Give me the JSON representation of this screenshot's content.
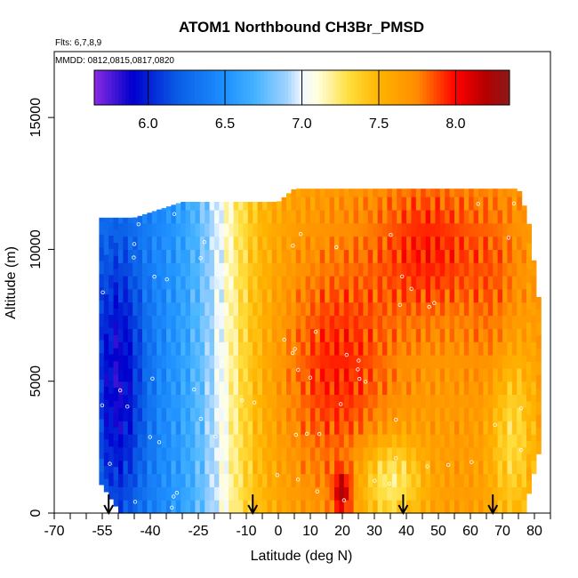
{
  "chart_data": {
    "type": "heatmap",
    "title": "ATOM1 Northbound CH3Br_PMSD",
    "subtitle_flights": "Flts: 6,7,8,9",
    "subtitle_dates": "MMDD: 0812,0815,0817,0820",
    "xlabel": "Latitude (deg N)",
    "ylabel": "Altitude (m)",
    "xlim": [
      -70,
      85
    ],
    "ylim": [
      0,
      17500
    ],
    "x_tick_labels": [
      "-70",
      "-55",
      "-40",
      "-25",
      "-10",
      "0",
      "10",
      "20",
      "30",
      "40",
      "50",
      "60",
      "70",
      "80"
    ],
    "x_ticks": [
      -70,
      -55,
      -40,
      -25,
      -10,
      0,
      10,
      20,
      30,
      40,
      50,
      60,
      70,
      80
    ],
    "x_minor_ticks": [
      -65,
      -60,
      -50,
      -45,
      -35,
      -30,
      -20,
      -15,
      -5,
      5,
      15,
      25,
      35,
      45,
      55,
      65,
      75,
      85
    ],
    "y_ticks": [
      0,
      5000,
      10000,
      15000
    ],
    "y_tick_labels": [
      "0",
      "5000",
      "10000",
      "15000"
    ],
    "colorbar": {
      "range": [
        5.65,
        8.35
      ],
      "ticks": [
        6.0,
        6.5,
        7.0,
        7.5,
        8.0
      ],
      "tick_labels": [
        "6.0",
        "6.5",
        "7.0",
        "7.5",
        "8.0"
      ],
      "colors": [
        "#8a2be2",
        "#0000cd",
        "#0a5fe6",
        "#1e90ff",
        "#46b4ff",
        "#a0d2ff",
        "#f0f8ff",
        "#ffffe0",
        "#ffe040",
        "#ffb400",
        "#ff8c00",
        "#ff0000",
        "#b40000",
        "#8b1a1a"
      ],
      "stops": [
        5.65,
        5.9,
        6.2,
        6.5,
        6.7,
        6.9,
        7.0,
        7.1,
        7.3,
        7.5,
        7.75,
        8.0,
        8.2,
        8.35
      ]
    },
    "arrows_latitude": [
      -53,
      -8,
      39,
      67
    ],
    "grid": false,
    "description_fields": {
      "x_extent": [
        -56,
        82
      ],
      "top_altitude_by_latitude": [
        [
          -56,
          11200
        ],
        [
          -45,
          11200
        ],
        [
          -30,
          11800
        ],
        [
          -15,
          11800
        ],
        [
          0,
          11800
        ],
        [
          5,
          12300
        ],
        [
          40,
          12300
        ],
        [
          75,
          12300
        ],
        [
          78,
          11200
        ],
        [
          82,
          7500
        ]
      ]
    }
  }
}
